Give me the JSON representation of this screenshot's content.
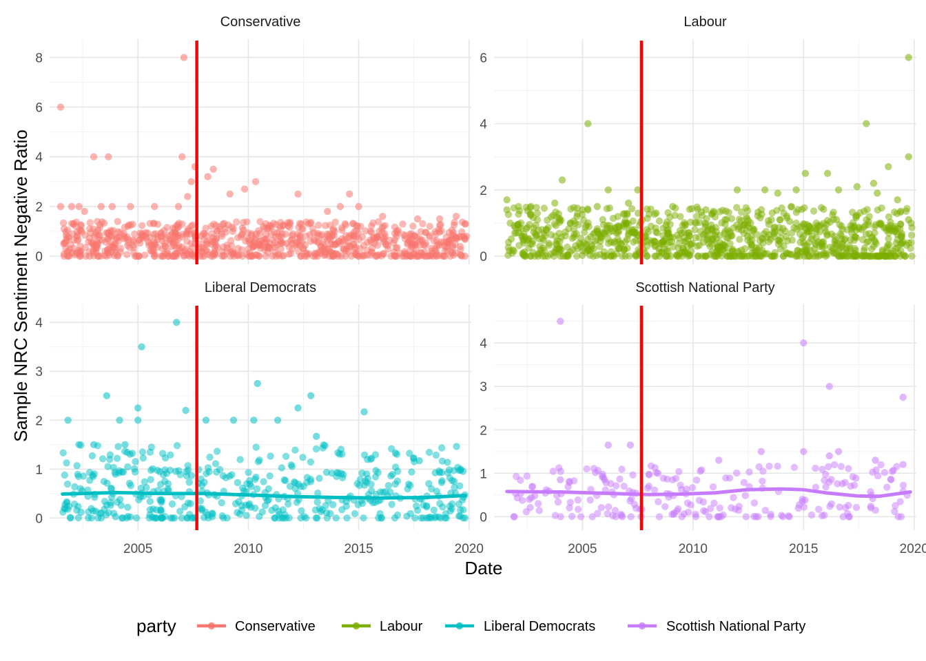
{
  "chart_data": {
    "type": "scatter",
    "xlabel": "Date",
    "ylabel": "Sample NRC Sentiment Negative Ratio",
    "x_ticks": [
      "2005",
      "2010",
      "2015",
      "2020"
    ],
    "xlim": [
      "2001-01-01",
      "2020-01-01"
    ],
    "grid": true,
    "legend": {
      "title": "party",
      "position": "bottom",
      "items": [
        "Conservative",
        "Labour",
        "Liberal Democrats",
        "Scottish National Party"
      ]
    },
    "vline": {
      "x": "2007-09-01",
      "color": "#FF0000"
    },
    "facets": [
      {
        "name": "Conservative",
        "color": "#F8766D",
        "ylim": [
          0,
          8.4
        ],
        "y_ticks": [
          "0",
          "2",
          "4",
          "6",
          "8"
        ],
        "points": [
          [
            "2001-07-01",
            6
          ],
          [
            "2001-07-01",
            2
          ],
          [
            "2002-01-01",
            2
          ],
          [
            "2002-05-01",
            2
          ],
          [
            "2002-08-01",
            1.8
          ],
          [
            "2003-01-01",
            4
          ],
          [
            "2003-05-01",
            2
          ],
          [
            "2003-09-01",
            4
          ],
          [
            "2003-11-01",
            2
          ],
          [
            "2004-09-01",
            2
          ],
          [
            "2005-10-01",
            2
          ],
          [
            "2006-11-01",
            2
          ],
          [
            "2007-02-01",
            8
          ],
          [
            "2007-01-01",
            4
          ],
          [
            "2007-04-01",
            2.4
          ],
          [
            "2007-06-01",
            3
          ],
          [
            "2007-08-01",
            3.6
          ],
          [
            "2008-03-01",
            3.2
          ],
          [
            "2008-06-01",
            3.5
          ],
          [
            "2009-03-01",
            2.5
          ],
          [
            "2009-11-01",
            2.7
          ],
          [
            "2010-05-01",
            3
          ],
          [
            "2012-04-01",
            2.5
          ],
          [
            "2013-08-01",
            1.8
          ],
          [
            "2014-03-01",
            2
          ],
          [
            "2014-08-01",
            2.5
          ],
          [
            "2015-01-01",
            2
          ],
          [
            "2016-02-01",
            1.6
          ],
          [
            "2017-09-01",
            1.5
          ],
          [
            "2018-09-01",
            1.5
          ],
          [
            "2019-06-01",
            1.6
          ],
          [
            "2019-11-01",
            1.3
          ]
        ],
        "cloud": {
          "dense_max": 1.0,
          "sparse_max": 1.4,
          "n": 850
        }
      },
      {
        "name": "Labour",
        "color": "#7CAE00",
        "ylim": [
          0,
          6.3
        ],
        "y_ticks": [
          "0",
          "2",
          "4",
          "6"
        ],
        "points": [
          [
            "2001-08-01",
            1.7
          ],
          [
            "2001-08-01",
            1.4
          ],
          [
            "2002-09-01",
            1.5
          ],
          [
            "2003-10-01",
            1.6
          ],
          [
            "2004-02-01",
            2.3
          ],
          [
            "2004-10-01",
            1.2
          ],
          [
            "2005-01-01",
            1.4
          ],
          [
            "2005-04-01",
            4
          ],
          [
            "2005-09-01",
            1.5
          ],
          [
            "2006-03-01",
            2
          ],
          [
            "2007-02-01",
            1.6
          ],
          [
            "2007-07-01",
            2
          ],
          [
            "2008-05-01",
            1.3
          ],
          [
            "2009-02-01",
            1.5
          ],
          [
            "2010-08-01",
            1.4
          ],
          [
            "2012-01-01",
            2
          ],
          [
            "2013-04-01",
            2
          ],
          [
            "2013-11-01",
            1.9
          ],
          [
            "2014-09-01",
            2
          ],
          [
            "2015-02-01",
            2.5
          ],
          [
            "2016-02-01",
            2.5
          ],
          [
            "2016-08-01",
            2
          ],
          [
            "2017-06-01",
            2.1
          ],
          [
            "2017-11-01",
            4
          ],
          [
            "2018-03-01",
            2.2
          ],
          [
            "2018-05-01",
            1.9
          ],
          [
            "2018-11-01",
            2.7
          ],
          [
            "2019-04-01",
            1.7
          ],
          [
            "2019-10-01",
            6
          ],
          [
            "2019-10-01",
            3
          ],
          [
            "2019-10-01",
            1.1
          ]
        ],
        "cloud": {
          "dense_max": 1.0,
          "sparse_max": 1.5,
          "n": 950
        }
      },
      {
        "name": "Liberal Democrats",
        "color": "#00BFC4",
        "ylim": [
          -0.08,
          4.2
        ],
        "y_ticks": [
          "0",
          "1",
          "2",
          "3",
          "4"
        ],
        "points": [
          [
            "2001-11-01",
            2
          ],
          [
            "2002-05-01",
            1.5
          ],
          [
            "2003-01-01",
            1.5
          ],
          [
            "2003-08-01",
            2.5
          ],
          [
            "2004-03-01",
            2
          ],
          [
            "2004-06-01",
            1.5
          ],
          [
            "2005-03-01",
            3.5
          ],
          [
            "2005-01-01",
            2.25
          ],
          [
            "2005-01-01",
            2
          ],
          [
            "2006-10-01",
            4
          ],
          [
            "2007-03-01",
            2.2
          ],
          [
            "2008-02-01",
            2
          ],
          [
            "2009-05-01",
            2
          ],
          [
            "2010-06-01",
            2.75
          ],
          [
            "2010-04-01",
            2
          ],
          [
            "2011-05-01",
            2
          ],
          [
            "2012-04-01",
            2.25
          ],
          [
            "2012-11-01",
            2.5
          ],
          [
            "2013-02-01",
            1.67
          ],
          [
            "2015-04-01",
            2.17
          ],
          [
            "2016-09-01",
            1.33
          ],
          [
            "2017-10-01",
            1.17
          ]
        ],
        "cloud": {
          "dense_max": 1.0,
          "sparse_max": 1.5,
          "n": 480
        },
        "trend": [
          [
            "2001-08-01",
            0.49
          ],
          [
            "2004-01-01",
            0.52
          ],
          [
            "2006-01-01",
            0.5
          ],
          [
            "2008-01-01",
            0.5
          ],
          [
            "2010-01-01",
            0.47
          ],
          [
            "2012-01-01",
            0.44
          ],
          [
            "2014-01-01",
            0.42
          ],
          [
            "2016-01-01",
            0.41
          ],
          [
            "2018-01-01",
            0.42
          ],
          [
            "2019-11-01",
            0.46
          ]
        ]
      },
      {
        "name": "Scottish National Party",
        "color": "#C77CFF",
        "ylim": [
          -0.12,
          4.7
        ],
        "y_ticks": [
          "0",
          "1",
          "2",
          "3",
          "4"
        ],
        "points": [
          [
            "2004-01-01",
            4.5
          ],
          [
            "2004-01-01",
            0.85
          ],
          [
            "2006-03-01",
            1.65
          ],
          [
            "2007-03-01",
            1.65
          ],
          [
            "2006-01-01",
            0.85
          ],
          [
            "2008-06-01",
            1
          ],
          [
            "2010-05-01",
            1.05
          ],
          [
            "2011-03-01",
            1.3
          ],
          [
            "2013-02-01",
            1.5
          ],
          [
            "2015-01-01",
            4
          ],
          [
            "2015-01-01",
            1.5
          ],
          [
            "2016-03-01",
            3
          ],
          [
            "2016-03-01",
            1.4
          ],
          [
            "2016-08-01",
            1.5
          ],
          [
            "2018-04-01",
            1.3
          ],
          [
            "2019-07-01",
            2.75
          ],
          [
            "2019-07-01",
            1.2
          ]
        ],
        "cloud": {
          "dense_max": 1.0,
          "sparse_max": 1.2,
          "n": 230
        },
        "trend": [
          [
            "2001-08-01",
            0.58
          ],
          [
            "2004-01-01",
            0.57
          ],
          [
            "2006-01-01",
            0.54
          ],
          [
            "2008-01-01",
            0.51
          ],
          [
            "2009-06-01",
            0.52
          ],
          [
            "2011-01-01",
            0.55
          ],
          [
            "2012-06-01",
            0.62
          ],
          [
            "2014-01-01",
            0.64
          ],
          [
            "2015-01-01",
            0.62
          ],
          [
            "2016-01-01",
            0.55
          ],
          [
            "2017-06-01",
            0.48
          ],
          [
            "2018-06-01",
            0.47
          ],
          [
            "2019-11-01",
            0.57
          ]
        ]
      }
    ]
  }
}
